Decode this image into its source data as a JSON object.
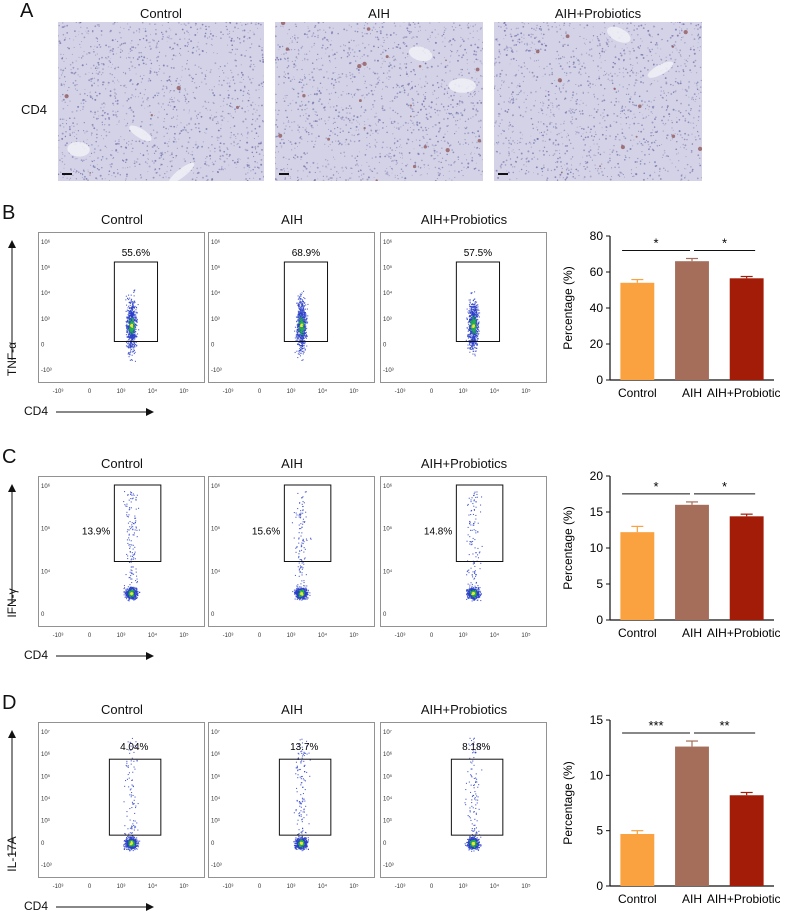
{
  "panel_A": {
    "letter": "A",
    "row_label": "CD4",
    "columns": [
      "Control",
      "AIH",
      "AIH+Probiotics"
    ],
    "stain_density": [
      0.08,
      0.35,
      0.22
    ]
  },
  "flow_rows": [
    {
      "letter": "B",
      "y_marker": "TNF-α",
      "x_marker": "CD4",
      "columns": [
        "Control",
        "AIH",
        "AIH+Probiotics"
      ],
      "percentages": [
        "55.6%",
        "68.9%",
        "57.5%"
      ],
      "y_ticks": [
        "10⁶",
        "10⁵",
        "10⁴",
        "10³",
        "0",
        "-10³"
      ],
      "x_ticks": [
        "-10³",
        "0",
        "10³",
        "10⁴",
        "10⁵"
      ]
    },
    {
      "letter": "C",
      "y_marker": "IFN-γ",
      "x_marker": "CD4",
      "columns": [
        "Control",
        "AIH",
        "AIH+Probiotics"
      ],
      "percentages": [
        "13.9%",
        "15.6%",
        "14.8%"
      ],
      "y_ticks": [
        "10⁶",
        "10⁵",
        "10⁴",
        "0"
      ],
      "x_ticks": [
        "-10³",
        "0",
        "10³",
        "10⁴",
        "10⁵"
      ]
    },
    {
      "letter": "D",
      "y_marker": "IL-17A",
      "x_marker": "CD4",
      "columns": [
        "Control",
        "AIH",
        "AIH+Probiotics"
      ],
      "percentages": [
        "4.04%",
        "13.7%",
        "8.18%"
      ],
      "y_ticks": [
        "10⁷",
        "10⁶",
        "10⁵",
        "10⁴",
        "10³",
        "0",
        "-10³"
      ],
      "x_ticks": [
        "-10³",
        "0",
        "10³",
        "10⁴",
        "10⁵"
      ]
    }
  ],
  "colors": {
    "control": "#f9a23f",
    "aih": "#a56e5a",
    "aih_probiotics": "#a31c08",
    "dots": "#2b3fc7",
    "dots_dense": "#22b14c",
    "dots_core": "#f2e33a",
    "he_background": "#d3d2e6",
    "he_nuclei": "#6b6aa8",
    "stain": "#8a4a4a"
  },
  "chart_data": [
    {
      "type": "bar",
      "categories": [
        "Control",
        "AIH",
        "AIH+Probiotics"
      ],
      "values": [
        54,
        66,
        56.5
      ],
      "errors": [
        1.8,
        1.5,
        1.0
      ],
      "ylabel": "Percentage (%)",
      "ylim": [
        0,
        80
      ],
      "yticks": [
        0,
        20,
        40,
        60,
        80
      ],
      "significance": [
        {
          "from": 0,
          "to": 1,
          "label": "*"
        },
        {
          "from": 1,
          "to": 2,
          "label": "*"
        }
      ]
    },
    {
      "type": "bar",
      "categories": [
        "Control",
        "AIH",
        "AIH+Probiotics"
      ],
      "values": [
        12.2,
        16.0,
        14.4
      ],
      "errors": [
        0.8,
        0.4,
        0.3
      ],
      "ylabel": "Percentage (%)",
      "ylim": [
        0,
        20
      ],
      "yticks": [
        0,
        5,
        10,
        15,
        20
      ],
      "significance": [
        {
          "from": 0,
          "to": 1,
          "label": "*"
        },
        {
          "from": 1,
          "to": 2,
          "label": "*"
        }
      ]
    },
    {
      "type": "bar",
      "categories": [
        "Control",
        "AIH",
        "AIH+Probiotics"
      ],
      "values": [
        4.7,
        12.6,
        8.2
      ],
      "errors": [
        0.3,
        0.5,
        0.25
      ],
      "ylabel": "Percentage (%)",
      "ylim": [
        0,
        15
      ],
      "yticks": [
        0,
        5,
        10,
        15
      ],
      "significance": [
        {
          "from": 0,
          "to": 1,
          "label": "***"
        },
        {
          "from": 1,
          "to": 2,
          "label": "**"
        }
      ]
    }
  ]
}
